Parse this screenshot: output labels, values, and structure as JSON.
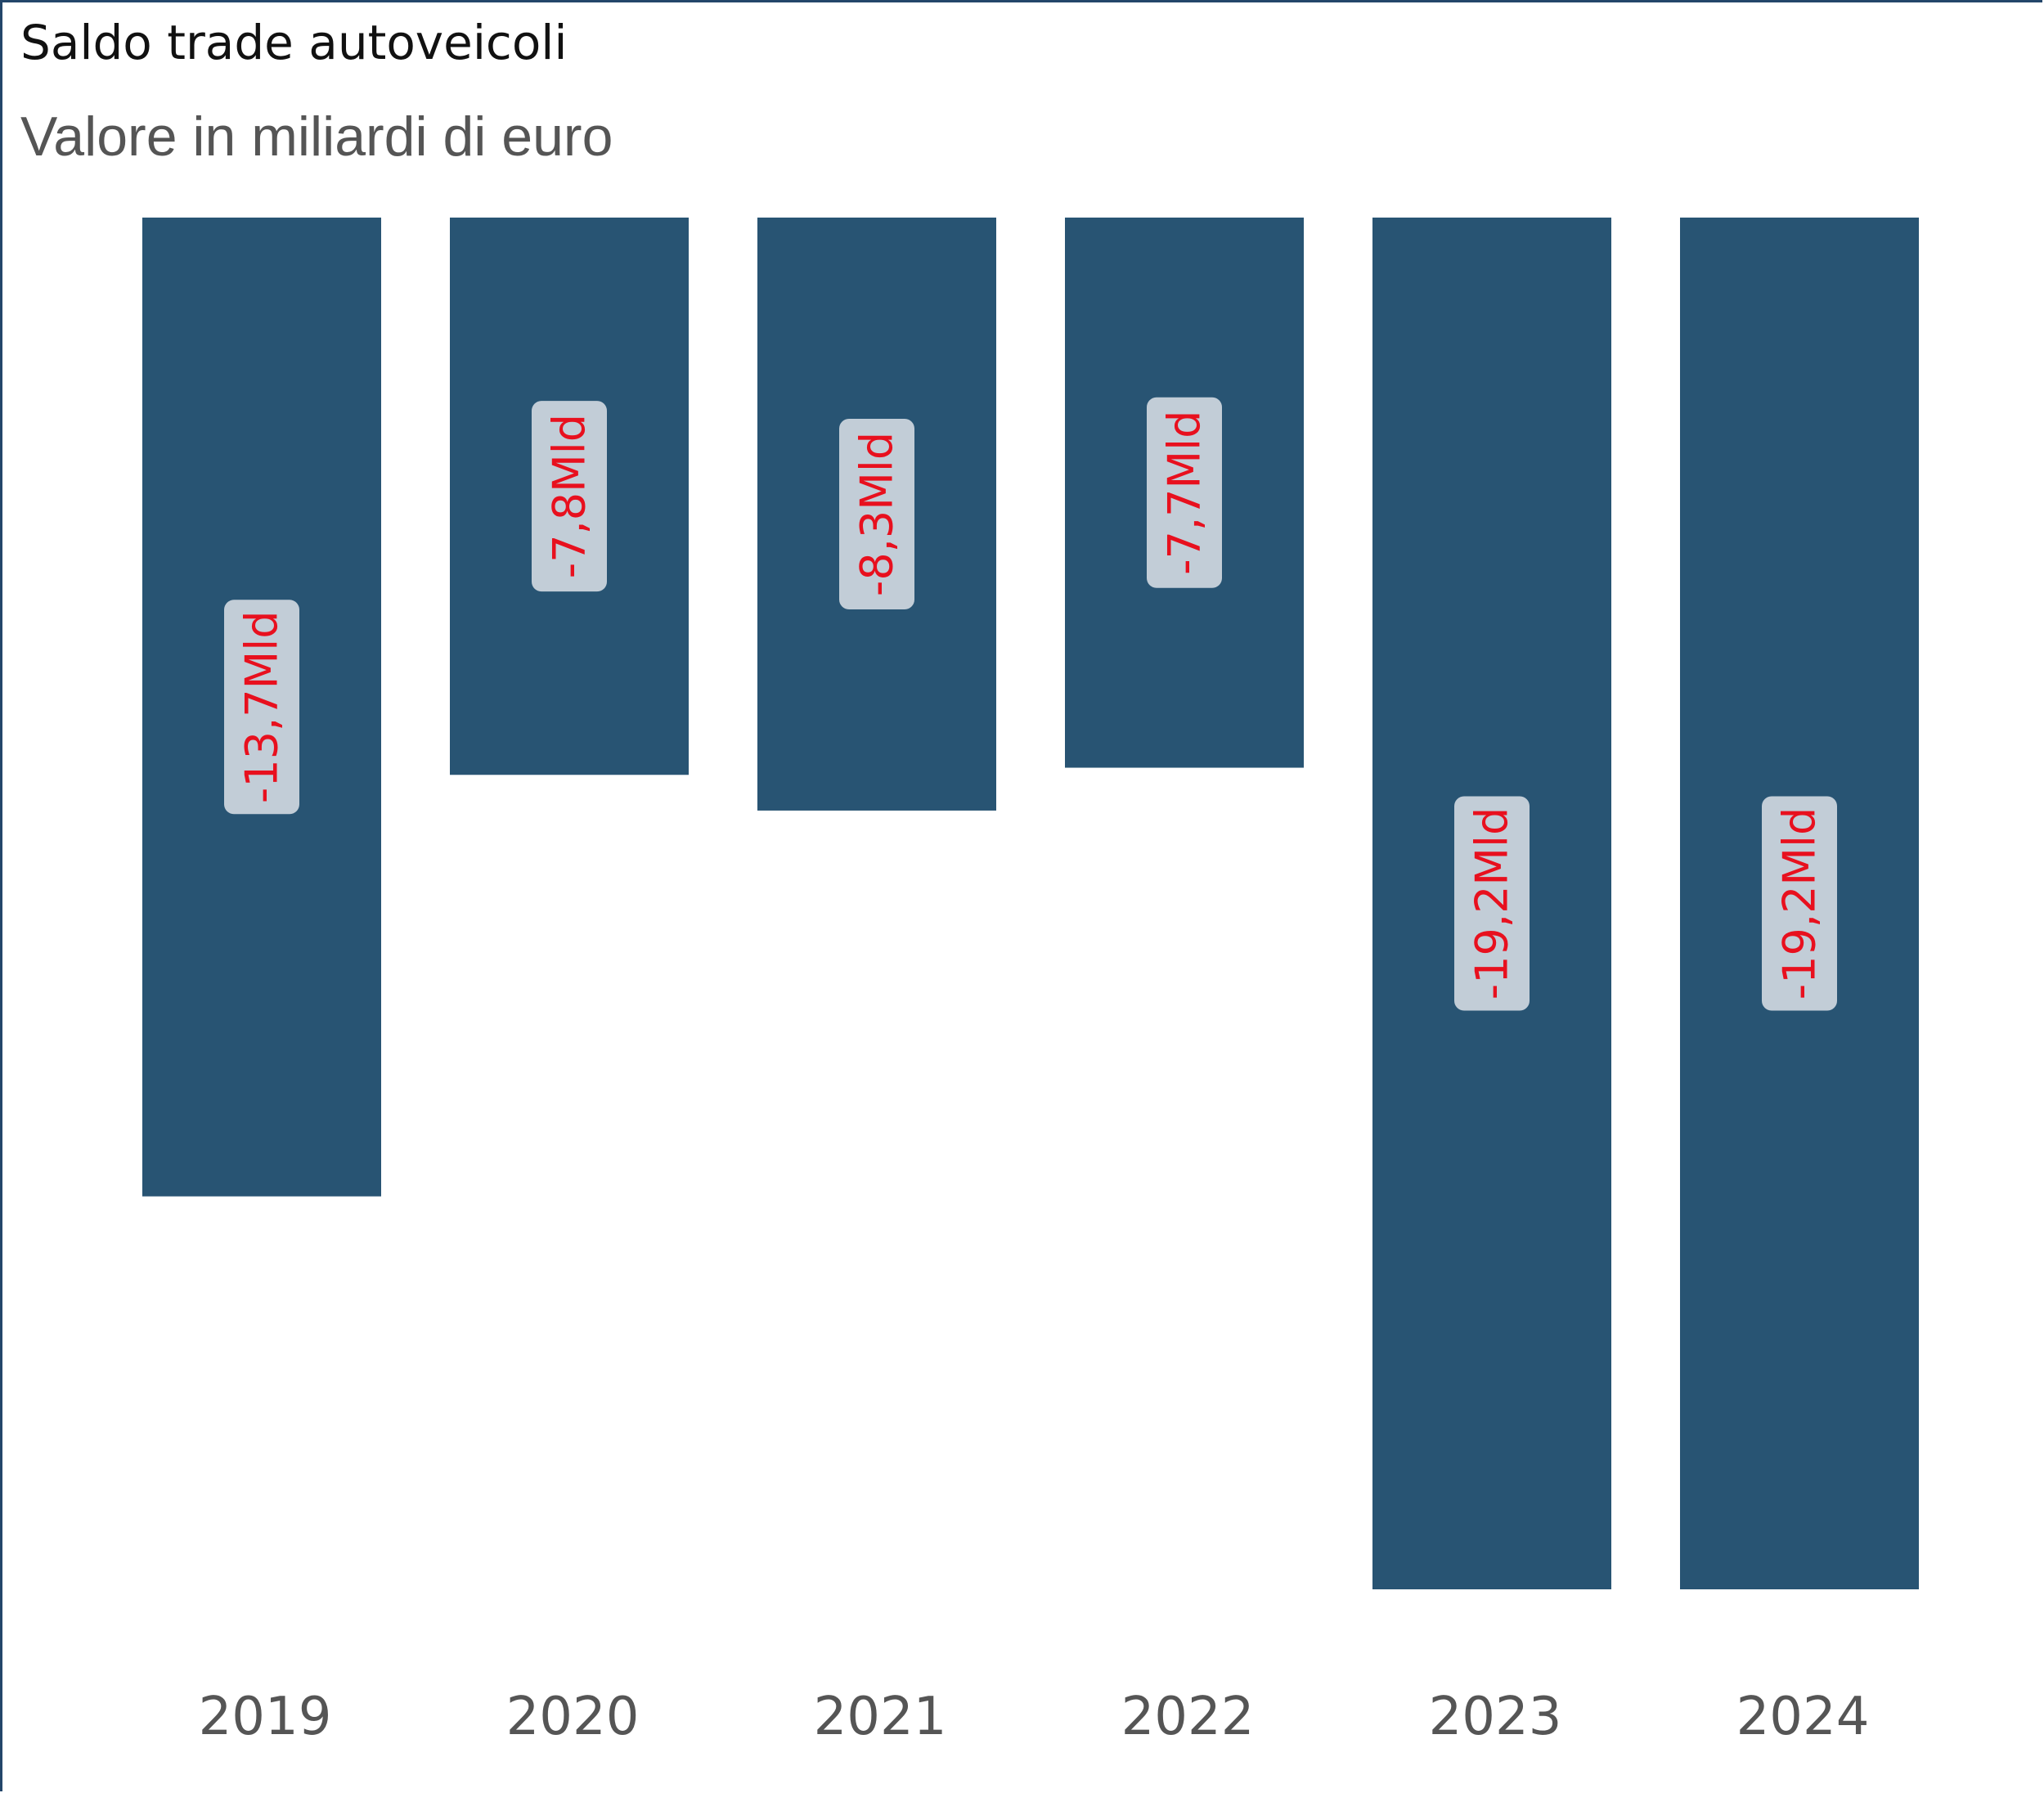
{
  "header": {
    "title": "Saldo trade autoveicoli",
    "subtitle": "Valore in miliardi di euro"
  },
  "colors": {
    "bar": "#285473",
    "label_bg": "#c2cdd7",
    "label_text": "#e8101e",
    "tick_text": "#555555"
  },
  "chart_data": {
    "type": "bar",
    "title": "Saldo trade autoveicoli",
    "subtitle": "Valore in miliardi di euro",
    "categories": [
      "2019",
      "2020",
      "2021",
      "2022",
      "2023",
      "2024"
    ],
    "values": [
      -13.7,
      -7.8,
      -8.3,
      -7.7,
      -19.2,
      -19.2
    ],
    "data_labels": [
      "-13,7Mld",
      "-7,8Mld",
      "-8,3Mld",
      "-7,7Mld",
      "-19,2Mld",
      "-19,2Mld"
    ],
    "ylim": [
      -19.2,
      0
    ],
    "grid": false,
    "legend": "none",
    "xlabel": "",
    "ylabel": ""
  }
}
